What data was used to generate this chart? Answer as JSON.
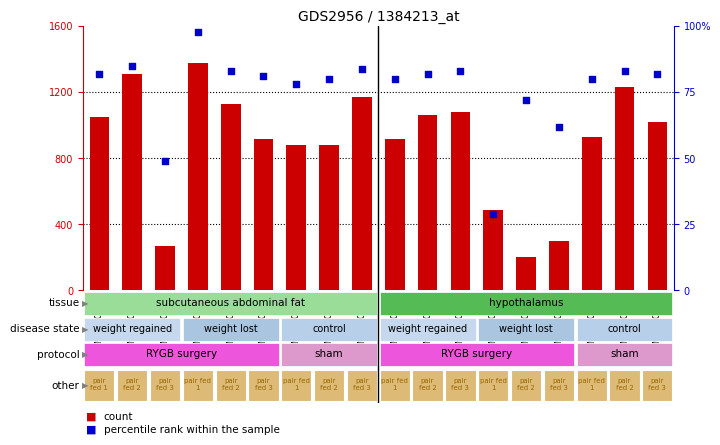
{
  "title": "GDS2956 / 1384213_at",
  "samples": [
    "GSM206031",
    "GSM206036",
    "GSM206040",
    "GSM206043",
    "GSM206044",
    "GSM206045",
    "GSM206022",
    "GSM206024",
    "GSM206027",
    "GSM206034",
    "GSM206038",
    "GSM206041",
    "GSM206046",
    "GSM206049",
    "GSM206050",
    "GSM206023",
    "GSM206025",
    "GSM206028"
  ],
  "counts": [
    1050,
    1310,
    270,
    1380,
    1130,
    920,
    880,
    880,
    1170,
    920,
    1060,
    1080,
    490,
    200,
    300,
    930,
    1230,
    1020
  ],
  "percentiles": [
    82,
    85,
    49,
    98,
    83,
    81,
    78,
    80,
    84,
    80,
    82,
    83,
    29,
    72,
    62,
    80,
    83,
    82
  ],
  "ylim_left": [
    0,
    1600
  ],
  "ylim_right": [
    0,
    100
  ],
  "yticks_left": [
    0,
    400,
    800,
    1200,
    1600
  ],
  "yticks_right": [
    0,
    25,
    50,
    75,
    100
  ],
  "bar_color": "#cc0000",
  "dot_color": "#0000cc",
  "tissue_groups": [
    {
      "label": "subcutaneous abdominal fat",
      "start": 0,
      "end": 9,
      "color": "#99dd99"
    },
    {
      "label": "hypothalamus",
      "start": 9,
      "end": 18,
      "color": "#55bb55"
    }
  ],
  "disease_groups": [
    {
      "label": "weight regained",
      "start": 0,
      "end": 3
    },
    {
      "label": "weight lost",
      "start": 3,
      "end": 6
    },
    {
      "label": "control",
      "start": 6,
      "end": 9
    },
    {
      "label": "weight regained",
      "start": 9,
      "end": 12
    },
    {
      "label": "weight lost",
      "start": 12,
      "end": 15
    },
    {
      "label": "control",
      "start": 15,
      "end": 18
    }
  ],
  "disease_colors": [
    "#c5d8ed",
    "#aac5e0",
    "#b8cfea"
  ],
  "protocol_groups": [
    {
      "label": "RYGB surgery",
      "start": 0,
      "end": 6
    },
    {
      "label": "sham",
      "start": 6,
      "end": 9
    },
    {
      "label": "RYGB surgery",
      "start": 9,
      "end": 15
    },
    {
      "label": "sham",
      "start": 15,
      "end": 18
    }
  ],
  "protocol_colors": {
    "RYGB surgery": "#ee55dd",
    "sham": "#dd99cc"
  },
  "other_labels": [
    "pair\nfed 1",
    "pair\nfed 2",
    "pair\nfed 3",
    "pair fed\n1",
    "pair\nfed 2",
    "pair\nfed 3",
    "pair fed\n1",
    "pair\nfed 2",
    "pair\nfed 3",
    "pair fed\n1",
    "pair\nfed 2",
    "pair\nfed 3",
    "pair fed\n1",
    "pair\nfed 2",
    "pair\nfed 3",
    "pair fed\n1",
    "pair\nfed 2",
    "pair\nfed 3"
  ],
  "other_color": "#ddbb77",
  "other_text_color": "#996600",
  "background_color": "#ffffff"
}
